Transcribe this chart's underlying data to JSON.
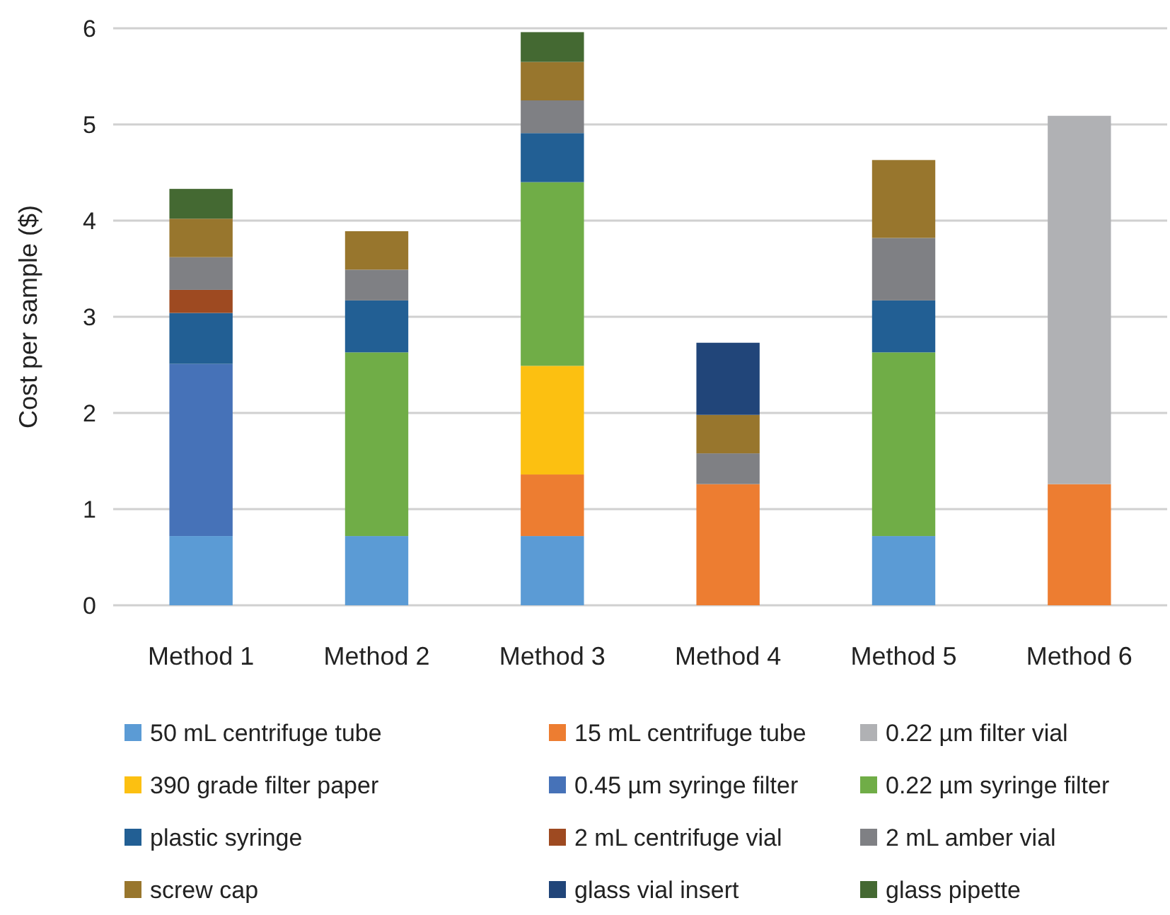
{
  "chart_data": {
    "type": "bar",
    "stacked": true,
    "ylabel": "Cost per sample ($)",
    "categories": [
      "Method 1",
      "Method 2",
      "Method 3",
      "Method 4",
      "Method 5",
      "Method 6"
    ],
    "ylim": [
      0,
      6
    ],
    "yticks": [
      0,
      1,
      2,
      3,
      4,
      5,
      6
    ],
    "grid": "y",
    "legend": "bottom",
    "series": [
      {
        "name": "50 mL centrifuge tube",
        "color": "#5b9bd5",
        "values": [
          0.72,
          0.72,
          0.72,
          null,
          0.72,
          null
        ]
      },
      {
        "name": "15 mL centrifuge tube",
        "color": "#ed7d31",
        "values": [
          null,
          null,
          0.64,
          1.26,
          null,
          1.26
        ]
      },
      {
        "name": "0.22 µm filter vial",
        "color": "#b0b1b4",
        "values": [
          null,
          null,
          null,
          null,
          null,
          3.83
        ]
      },
      {
        "name": "390 grade filter paper",
        "color": "#fcc011",
        "values": [
          null,
          null,
          1.13,
          null,
          null,
          null
        ]
      },
      {
        "name": "0.45 µm syringe filter",
        "color": "#4672b8",
        "values": [
          1.79,
          null,
          null,
          null,
          null,
          null
        ]
      },
      {
        "name": "0.22 µm syringe filter",
        "color": "#70ad47",
        "values": [
          null,
          1.91,
          1.91,
          null,
          1.91,
          null
        ]
      },
      {
        "name": "plastic syringe",
        "color": "#225f94",
        "values": [
          0.53,
          0.54,
          0.51,
          null,
          0.54,
          null
        ]
      },
      {
        "name": "2 mL centrifuge vial",
        "color": "#9e4a21",
        "values": [
          0.24,
          null,
          null,
          null,
          null,
          null
        ]
      },
      {
        "name": "2 mL amber vial",
        "color": "#7f8084",
        "values": [
          0.34,
          0.32,
          0.34,
          0.32,
          0.65,
          null
        ]
      },
      {
        "name": "screw cap",
        "color": "#98762d",
        "values": [
          0.4,
          0.4,
          0.4,
          0.4,
          0.81,
          null
        ]
      },
      {
        "name": "glass vial insert",
        "color": "#214579",
        "values": [
          null,
          null,
          null,
          0.75,
          null,
          null
        ]
      },
      {
        "name": "glass pipette",
        "color": "#446932",
        "values": [
          0.31,
          null,
          0.31,
          null,
          null,
          null
        ]
      }
    ]
  }
}
